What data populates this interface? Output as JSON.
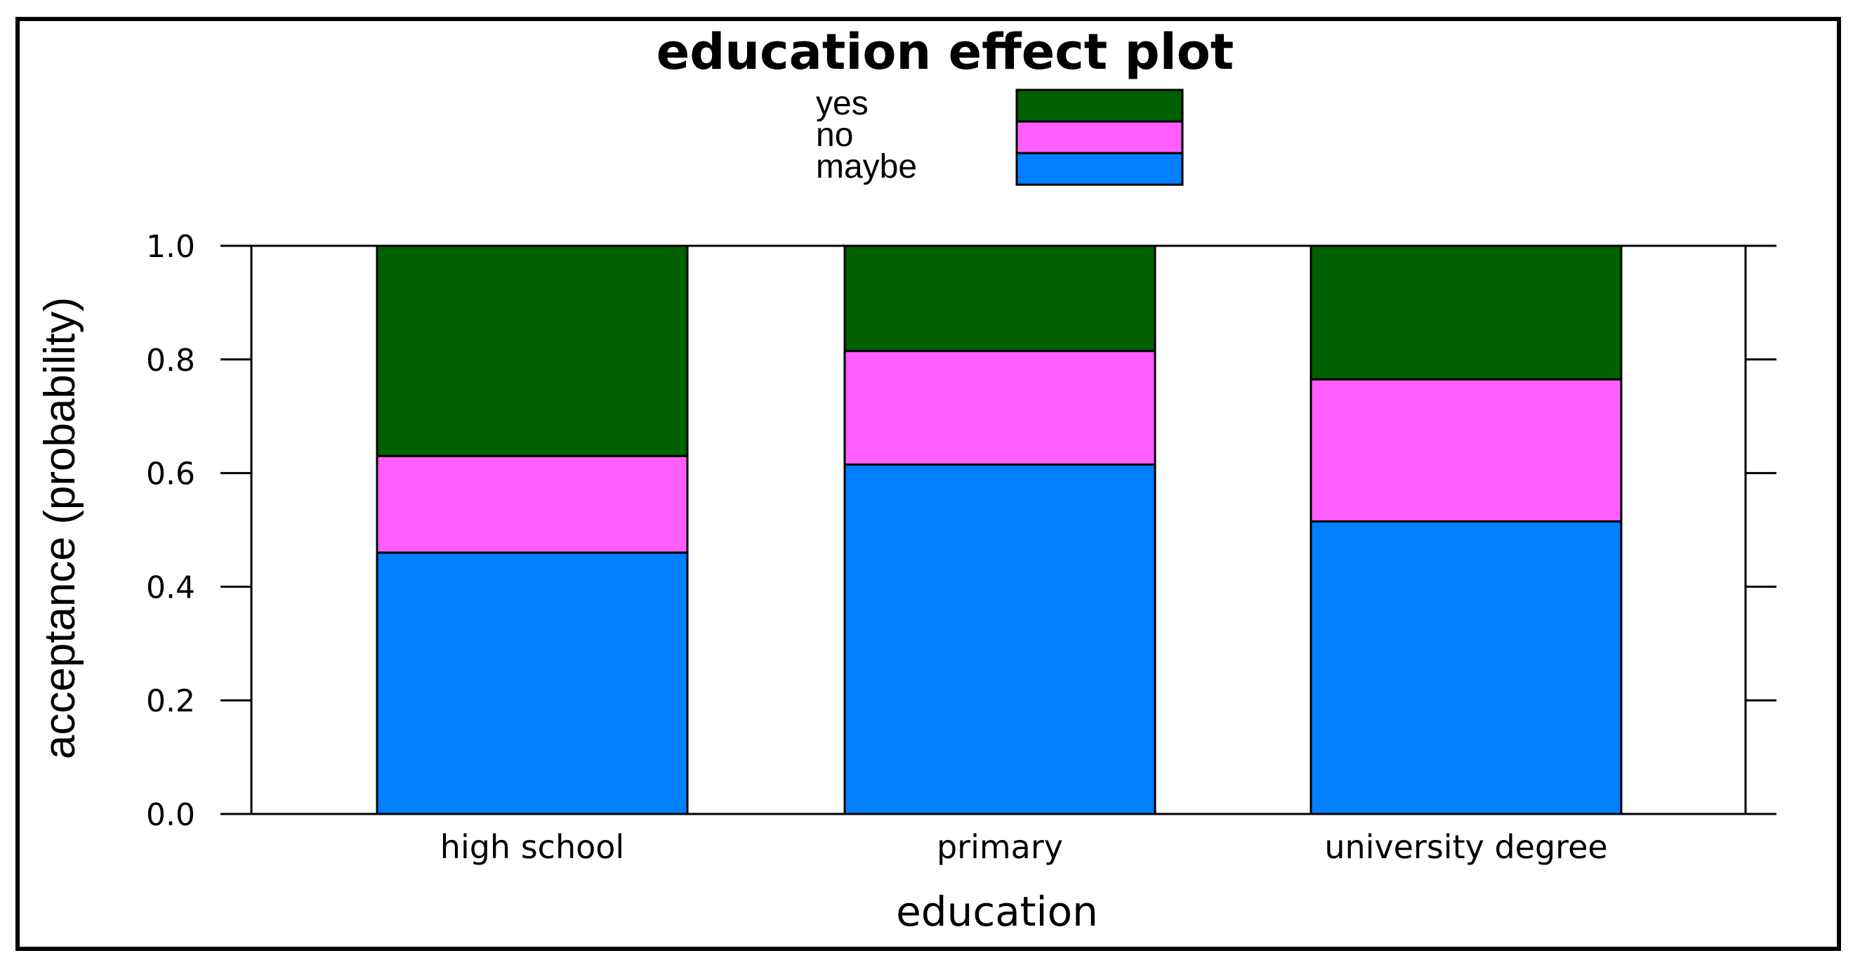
{
  "chart_data": {
    "type": "bar",
    "stacked": true,
    "title": "education effect plot",
    "xlabel": "education",
    "ylabel": "acceptance (probability)",
    "ylim": [
      0,
      1
    ],
    "yticks": [
      "0.0",
      "0.2",
      "0.4",
      "0.6",
      "0.8",
      "1.0"
    ],
    "categories": [
      "high school",
      "primary",
      "university degree"
    ],
    "series": [
      {
        "name": "maybe",
        "color": "#0080ff",
        "values": [
          0.46,
          0.615,
          0.515
        ]
      },
      {
        "name": "no",
        "color": "#ff5eff",
        "values": [
          0.17,
          0.2,
          0.25
        ]
      },
      {
        "name": "yes",
        "color": "#006000",
        "values": [
          0.37,
          0.185,
          0.235
        ]
      }
    ],
    "legend_order": [
      "yes",
      "no",
      "maybe"
    ],
    "legend_position": "top-center",
    "grid": false
  }
}
